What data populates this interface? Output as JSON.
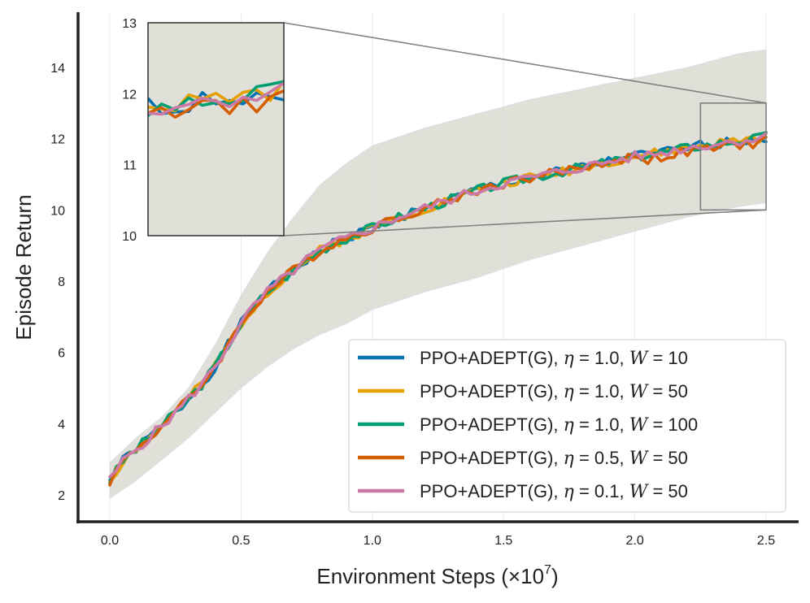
{
  "chart_data": {
    "type": "line",
    "xlabel": "Environment Steps (×10⁷)",
    "xlabel_base": "Environment Steps (×10",
    "xlabel_exp": "7",
    "xlabel_close": ")",
    "ylabel": "Episode Return",
    "xlim": [
      -0.12,
      2.62
    ],
    "ylim": [
      1.25,
      15.5
    ],
    "xticks": [
      "0.0",
      "0.5",
      "1.0",
      "1.5",
      "2.0",
      "2.5"
    ],
    "yticks": [
      "2",
      "4",
      "6",
      "8",
      "10",
      "12",
      "14"
    ],
    "grid": "vertical",
    "legend": "lower-right",
    "band": {
      "color": "#d6d6cc",
      "x": [
        0.0,
        0.1,
        0.2,
        0.3,
        0.4,
        0.5,
        0.6,
        0.7,
        0.8,
        0.9,
        1.0,
        1.2,
        1.4,
        1.6,
        1.8,
        2.0,
        2.2,
        2.4,
        2.5
      ],
      "lower": [
        1.9,
        2.4,
        3.0,
        3.6,
        4.3,
        5.0,
        5.6,
        6.1,
        6.5,
        6.8,
        7.2,
        7.7,
        8.1,
        8.6,
        9.0,
        9.4,
        9.8,
        10.1,
        10.2
      ],
      "upper": [
        2.9,
        3.6,
        4.2,
        5.0,
        6.2,
        7.6,
        8.8,
        9.8,
        10.7,
        11.3,
        11.8,
        12.3,
        12.7,
        13.1,
        13.4,
        13.7,
        14.0,
        14.4,
        14.5
      ]
    },
    "series": [
      {
        "name": "PPO+ADEPT(G), η = 1.0, W = 10",
        "prefix": "PPO+ADEPT(G),",
        "eta": "1.0",
        "w": "10",
        "color": "#0072b2",
        "seed": 1
      },
      {
        "name": "PPO+ADEPT(G), η = 1.0, W = 50",
        "prefix": "PPO+ADEPT(G),",
        "eta": "1.0",
        "w": "50",
        "color": "#e69f00",
        "seed": 2
      },
      {
        "name": "PPO+ADEPT(G), η = 1.0, W = 100",
        "prefix": "PPO+ADEPT(G),",
        "eta": "1.0",
        "w": "100",
        "color": "#009e73",
        "seed": 3
      },
      {
        "name": "PPO+ADEPT(G), η = 0.5, W = 50",
        "prefix": "PPO+ADEPT(G),",
        "eta": "0.5",
        "w": "50",
        "color": "#d55e00",
        "seed": 4
      },
      {
        "name": "PPO+ADEPT(G), η = 0.1, W = 50",
        "prefix": "PPO+ADEPT(G),",
        "eta": "0.1",
        "w": "50",
        "color": "#cc79a7",
        "seed": 5
      }
    ],
    "mean_curve": {
      "x": [
        0.0,
        0.05,
        0.1,
        0.15,
        0.2,
        0.25,
        0.3,
        0.35,
        0.4,
        0.45,
        0.5,
        0.55,
        0.6,
        0.65,
        0.7,
        0.75,
        0.8,
        0.85,
        0.9,
        0.95,
        1.0,
        1.05,
        1.1,
        1.2,
        1.3,
        1.4,
        1.5,
        1.6,
        1.7,
        1.8,
        1.9,
        2.0,
        2.1,
        2.2,
        2.3,
        2.4,
        2.5
      ],
      "y": [
        2.4,
        2.95,
        3.3,
        3.6,
        3.95,
        4.3,
        4.7,
        5.1,
        5.6,
        6.2,
        6.8,
        7.3,
        7.7,
        8.0,
        8.3,
        8.6,
        8.85,
        9.05,
        9.2,
        9.35,
        9.5,
        9.65,
        9.8,
        10.05,
        10.3,
        10.55,
        10.75,
        10.9,
        11.05,
        11.2,
        11.35,
        11.5,
        11.6,
        11.75,
        11.85,
        11.95,
        12.05
      ]
    },
    "inset": {
      "xlim": [
        2.25,
        2.5
      ],
      "ylim": [
        10.0,
        13.0
      ],
      "yticks": [
        "10",
        "11",
        "12",
        "13"
      ],
      "frame_color": "#222222",
      "zoom_color": "#808080"
    }
  }
}
